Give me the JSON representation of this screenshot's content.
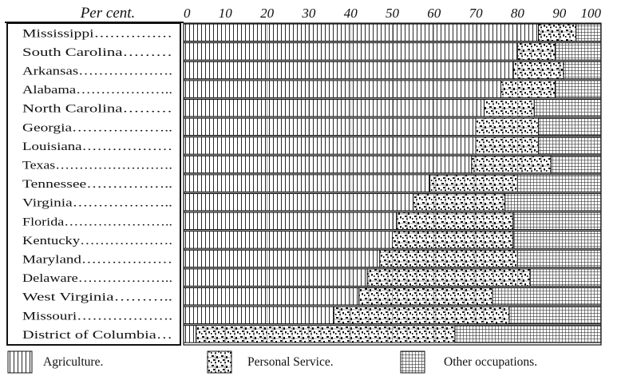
{
  "chart_data": {
    "type": "bar",
    "orientation": "horizontal",
    "stacked": true,
    "axis_label": "Per cent.",
    "ticks": [
      "0",
      "10",
      "20",
      "30",
      "40",
      "50",
      "60",
      "70",
      "80",
      "90",
      "100"
    ],
    "xlim": [
      0,
      100
    ],
    "grid": true,
    "legend_position": "bottom",
    "categories": [
      "Mississippi",
      "South Carolina",
      "Arkansas",
      "Alabama",
      "North Carolina",
      "Georgia",
      "Louisiana",
      "Texas",
      "Tennessee",
      "Virginia",
      "Florida",
      "Kentucky",
      "Maryland",
      "Delaware",
      "West Virginia",
      "Missouri",
      "District of Columbia"
    ],
    "category_labels": [
      "Mississippi……………",
      "South Carolina………",
      "Arkansas……………….",
      "Alabama………………..",
      "North Carolina………",
      "Georgia………………..",
      "Louisiana………………",
      "Texas…………………….",
      "Tennessee……………..",
      "Virginia………………..",
      "Florida…………………..",
      "Kentucky……………….",
      "Maryland………………",
      "Delaware………………..",
      "West Virginia………..",
      "Missouri……………….",
      "District of Columbia…"
    ],
    "series": [
      {
        "name": "Agriculture.",
        "values": [
          85,
          80,
          79,
          76,
          72,
          70,
          70,
          69,
          59,
          55,
          51,
          50,
          47,
          44,
          42,
          36,
          3
        ]
      },
      {
        "name": "Personal Service.",
        "values": [
          9,
          9,
          12,
          13,
          12,
          15,
          15,
          19,
          21,
          22,
          28,
          29,
          33,
          39,
          32,
          42,
          62
        ]
      },
      {
        "name": "Other occupations.",
        "values": [
          6,
          11,
          9,
          11,
          16,
          15,
          15,
          12,
          20,
          23,
          21,
          21,
          20,
          17,
          26,
          22,
          35
        ]
      }
    ],
    "colors": {
      "ink": "#111111",
      "paper": "#ffffff"
    }
  }
}
